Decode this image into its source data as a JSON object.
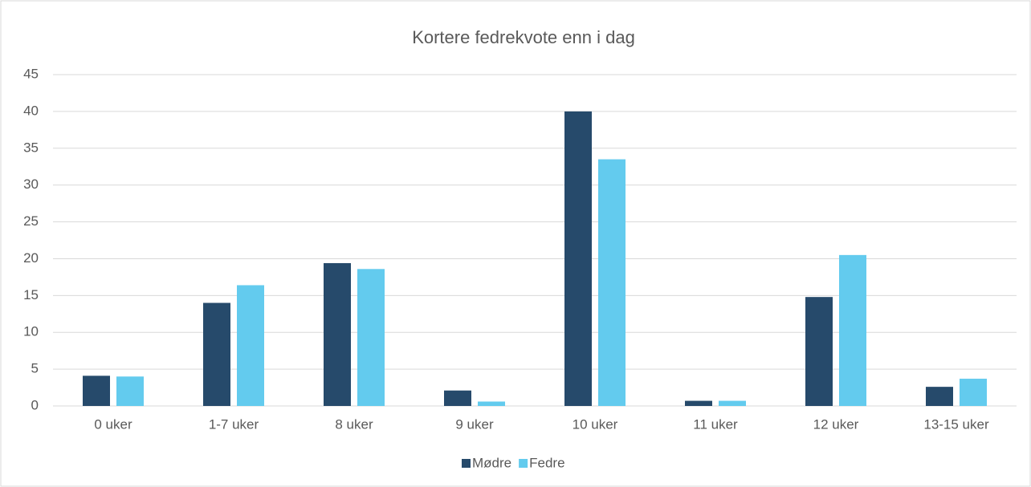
{
  "chart_data": {
    "type": "bar",
    "title": "Kortere fedrekvote enn i dag",
    "categories": [
      "0 uker",
      "1-7 uker",
      "8 uker",
      "9 uker",
      "10 uker",
      "11 uker",
      "12 uker",
      "13-15 uker"
    ],
    "series": [
      {
        "name": "Mødre",
        "color": "#264a6b",
        "values": [
          4.1,
          14.0,
          19.4,
          2.1,
          40.0,
          0.7,
          14.8,
          2.6
        ]
      },
      {
        "name": "Fedre",
        "color": "#63cbee",
        "values": [
          4.0,
          16.4,
          18.6,
          0.6,
          33.5,
          0.7,
          20.5,
          3.7
        ]
      }
    ],
    "ylim": [
      0,
      45
    ],
    "yticks": [
      0,
      5,
      10,
      15,
      20,
      25,
      30,
      35,
      40,
      45
    ],
    "grid": true,
    "legend": "bottom"
  }
}
